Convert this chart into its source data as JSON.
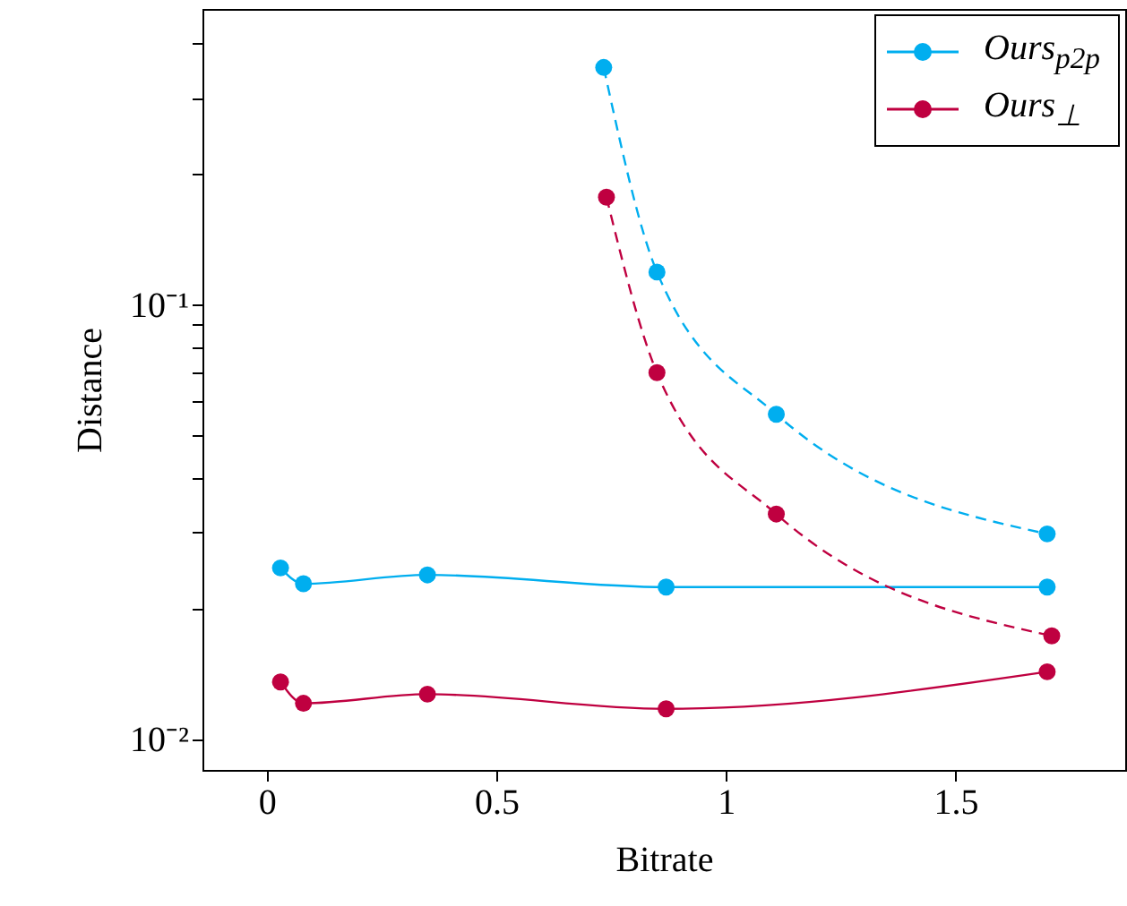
{
  "chart_data": {
    "type": "line",
    "xlabel": "Bitrate",
    "ylabel": "Distance",
    "log": "y",
    "grid": false,
    "legend": "top right",
    "marker": "circle",
    "xlim": [
      -0.14,
      1.87
    ],
    "xticks": [
      0,
      0.5,
      1,
      1.5
    ],
    "ylim": [
      0.0085,
      0.48
    ],
    "yticks": [
      {
        "value": 0.01,
        "label": "10⁻²"
      },
      {
        "value": 0.02,
        "label": null
      },
      {
        "value": 0.03,
        "label": null
      },
      {
        "value": 0.04,
        "label": null
      },
      {
        "value": 0.05,
        "label": null
      },
      {
        "value": 0.06,
        "label": null
      },
      {
        "value": 0.07,
        "label": null
      },
      {
        "value": 0.08,
        "label": null
      },
      {
        "value": 0.09,
        "label": null
      },
      {
        "value": 0.1,
        "label": "10⁻¹"
      },
      {
        "value": 0.2,
        "label": null
      },
      {
        "value": 0.3,
        "label": null
      },
      {
        "value": 0.4,
        "label": null
      }
    ],
    "series": [
      {
        "color": "#00aeef",
        "line_style": "dashed",
        "x": [
          0.734,
          0.85,
          1.11,
          1.7
        ],
        "values": [
          0.352,
          0.119,
          0.056,
          0.0297
        ]
      },
      {
        "name": "Ours$_{p2p}$",
        "color": "#00aeef",
        "line_style": "solid",
        "x": [
          0.03,
          0.08,
          0.35,
          0.87,
          1.7
        ],
        "values": [
          0.0248,
          0.0228,
          0.0239,
          0.0224,
          0.0224
        ]
      },
      {
        "color": "#bf0040",
        "line_style": "dashed",
        "x": [
          0.74,
          0.85,
          1.11,
          1.71
        ],
        "values": [
          0.177,
          0.0698,
          0.033,
          0.0173
        ]
      },
      {
        "name": "Ours$_{⊥}$",
        "color": "#bf0040",
        "line_style": "solid",
        "x": [
          0.03,
          0.08,
          0.35,
          0.87,
          1.7
        ],
        "values": [
          0.01355,
          0.0121,
          0.0127,
          0.01175,
          0.0143
        ]
      }
    ]
  }
}
